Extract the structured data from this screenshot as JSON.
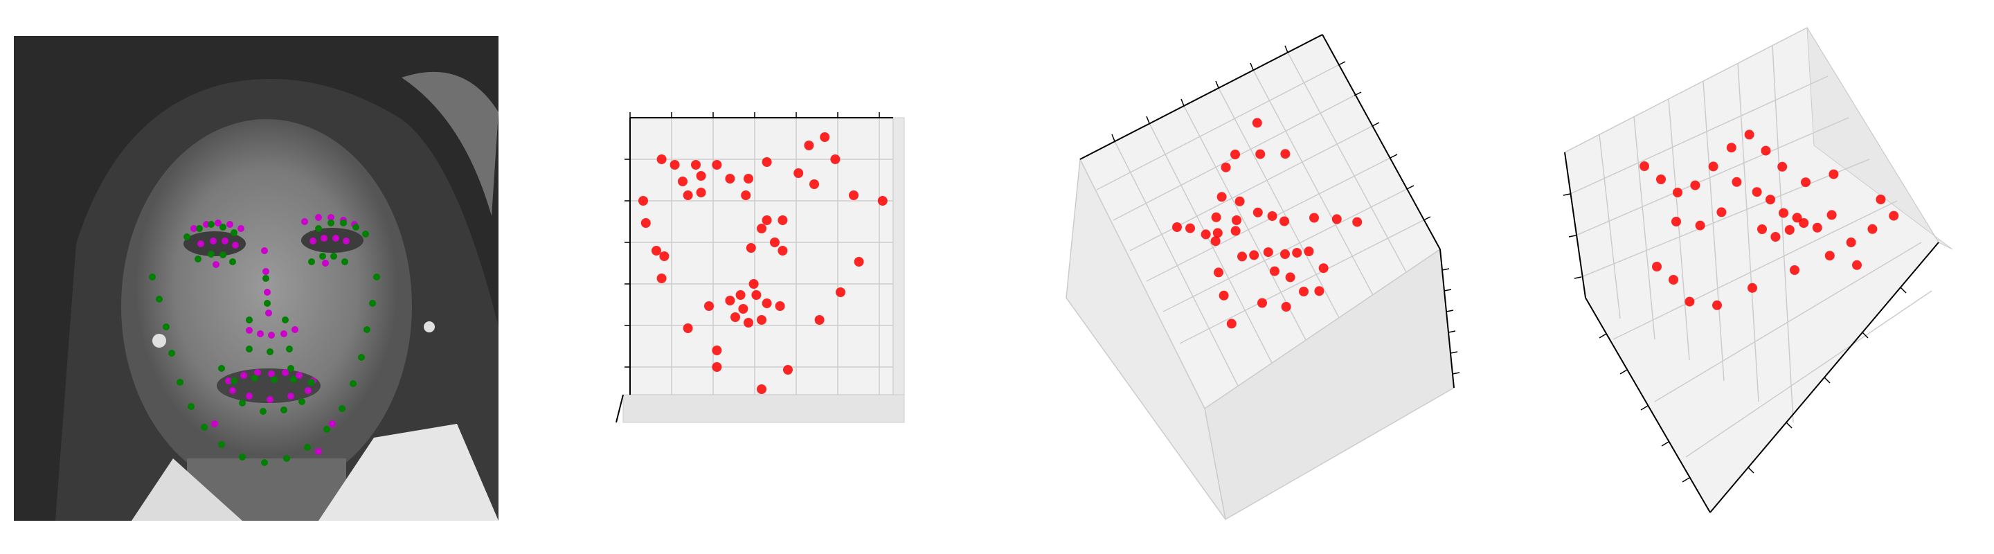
{
  "colors": {
    "landmark_pred": "#cc00cc",
    "landmark_true": "#008000",
    "point3d": "#ff0000",
    "pane": "#f2f2f2",
    "grid": "#cccccc",
    "axis": "#000000"
  },
  "chart_data": [
    {
      "type": "scatter",
      "subtype": "image-overlay",
      "series": [
        {
          "name": "",
          "color": "#cc00cc",
          "points": [
            [
              260,
              278
            ],
            [
              278,
              272
            ],
            [
              295,
              270
            ],
            [
              312,
              272
            ],
            [
              328,
              278
            ],
            [
              270,
              300
            ],
            [
              288,
              296
            ],
            [
              305,
              296
            ],
            [
              320,
              302
            ],
            [
              292,
              330
            ],
            [
              420,
              268
            ],
            [
              440,
              262
            ],
            [
              458,
              262
            ],
            [
              476,
              266
            ],
            [
              492,
              272
            ],
            [
              432,
              296
            ],
            [
              448,
              292
            ],
            [
              465,
              292
            ],
            [
              480,
              296
            ],
            [
              450,
              328
            ],
            [
              362,
              310
            ],
            [
              364,
              340
            ],
            [
              366,
              370
            ],
            [
              368,
              400
            ],
            [
              340,
              425
            ],
            [
              356,
              430
            ],
            [
              372,
              432
            ],
            [
              390,
              430
            ],
            [
              406,
              424
            ],
            [
              310,
              498
            ],
            [
              332,
              490
            ],
            [
              352,
              486
            ],
            [
              372,
              488
            ],
            [
              392,
              486
            ],
            [
              412,
              490
            ],
            [
              432,
              498
            ],
            [
              316,
              512
            ],
            [
              340,
              520
            ],
            [
              370,
              525
            ],
            [
              400,
              520
            ],
            [
              425,
              512
            ],
            [
              290,
              560
            ],
            [
              300,
              590
            ],
            [
              440,
              600
            ],
            [
              460,
              560
            ]
          ]
        },
        {
          "name": "",
          "color": "#008000",
          "points": [
            [
              200,
              348
            ],
            [
              210,
              380
            ],
            [
              220,
              420
            ],
            [
              228,
              458
            ],
            [
              240,
              500
            ],
            [
              256,
              535
            ],
            [
              275,
              565
            ],
            [
              300,
              590
            ],
            [
              330,
              608
            ],
            [
              362,
              616
            ],
            [
              394,
              610
            ],
            [
              424,
              594
            ],
            [
              452,
              568
            ],
            [
              474,
              538
            ],
            [
              490,
              502
            ],
            [
              502,
              464
            ],
            [
              510,
              424
            ],
            [
              518,
              386
            ],
            [
              524,
              348
            ],
            [
              250,
              290
            ],
            [
              268,
              278
            ],
            [
              285,
              272
            ],
            [
              302,
              276
            ],
            [
              318,
              284
            ],
            [
              440,
              278
            ],
            [
              458,
              270
            ],
            [
              476,
              270
            ],
            [
              494,
              276
            ],
            [
              508,
              286
            ],
            [
              266,
              322
            ],
            [
              285,
              315
            ],
            [
              302,
              316
            ],
            [
              316,
              326
            ],
            [
              430,
              326
            ],
            [
              446,
              318
            ],
            [
              462,
              318
            ],
            [
              478,
              326
            ],
            [
              364,
              350
            ],
            [
              366,
              386
            ],
            [
              340,
              410
            ],
            [
              392,
              410
            ],
            [
              340,
              452
            ],
            [
              370,
              456
            ],
            [
              398,
              452
            ],
            [
              318,
              498
            ],
            [
              348,
              494
            ],
            [
              376,
              496
            ],
            [
              404,
              496
            ],
            [
              430,
              500
            ],
            [
              330,
              530
            ],
            [
              360,
              542
            ],
            [
              390,
              540
            ],
            [
              416,
              528
            ],
            [
              400,
              480
            ],
            [
              300,
              480
            ]
          ]
        }
      ]
    },
    {
      "type": "scatter",
      "subtype": "3d",
      "series": [
        {
          "name": "",
          "color": "#ff0000",
          "points": [
            [
              0.12,
              0.85
            ],
            [
              0.17,
              0.83
            ],
            [
              0.25,
              0.83
            ],
            [
              0.33,
              0.83
            ],
            [
              0.52,
              0.84
            ],
            [
              0.78,
              0.85
            ],
            [
              0.68,
              0.9
            ],
            [
              0.74,
              0.93
            ],
            [
              0.2,
              0.77
            ],
            [
              0.27,
              0.79
            ],
            [
              0.38,
              0.78
            ],
            [
              0.45,
              0.78
            ],
            [
              0.64,
              0.8
            ],
            [
              0.7,
              0.76
            ],
            [
              0.22,
              0.72
            ],
            [
              0.27,
              0.73
            ],
            [
              0.44,
              0.72
            ],
            [
              0.52,
              0.63
            ],
            [
              0.58,
              0.63
            ],
            [
              0.46,
              0.53
            ],
            [
              0.5,
              0.6
            ],
            [
              0.55,
              0.55
            ],
            [
              0.58,
              0.52
            ],
            [
              0.3,
              0.32
            ],
            [
              0.38,
              0.34
            ],
            [
              0.43,
              0.31
            ],
            [
              0.48,
              0.36
            ],
            [
              0.52,
              0.33
            ],
            [
              0.57,
              0.32
            ],
            [
              0.4,
              0.28
            ],
            [
              0.45,
              0.26
            ],
            [
              0.5,
              0.27
            ],
            [
              0.42,
              0.36
            ],
            [
              0.47,
              0.4
            ],
            [
              0.05,
              0.7
            ],
            [
              0.06,
              0.62
            ],
            [
              0.1,
              0.52
            ],
            [
              0.13,
              0.5
            ],
            [
              0.12,
              0.42
            ],
            [
              0.22,
              0.24
            ],
            [
              0.33,
              0.16
            ],
            [
              0.33,
              0.1
            ],
            [
              0.5,
              0.02
            ],
            [
              0.6,
              0.09
            ],
            [
              0.72,
              0.27
            ],
            [
              0.8,
              0.37
            ],
            [
              0.87,
              0.48
            ],
            [
              0.85,
              0.72
            ],
            [
              0.96,
              0.7
            ]
          ]
        }
      ]
    },
    {
      "type": "scatter",
      "subtype": "3d",
      "series": [
        {
          "name": "",
          "color": "#ff0000",
          "points": [
            [
              0.22,
              0.2
            ],
            [
              0.24,
              0.3
            ],
            [
              0.26,
              0.38
            ],
            [
              0.3,
              0.48
            ],
            [
              0.34,
              0.55
            ],
            [
              0.39,
              0.6
            ],
            [
              0.45,
              0.68
            ],
            [
              0.5,
              0.7
            ],
            [
              0.58,
              0.65
            ],
            [
              0.62,
              0.75
            ],
            [
              0.66,
              0.6
            ],
            [
              0.2,
              0.6
            ],
            [
              0.24,
              0.57
            ],
            [
              0.28,
              0.52
            ],
            [
              0.32,
              0.5
            ],
            [
              0.38,
              0.47
            ],
            [
              0.4,
              0.5
            ],
            [
              0.44,
              0.55
            ],
            [
              0.48,
              0.48
            ],
            [
              0.52,
              0.44
            ],
            [
              0.55,
              0.4
            ],
            [
              0.36,
              0.38
            ],
            [
              0.4,
              0.36
            ],
            [
              0.45,
              0.34
            ],
            [
              0.5,
              0.3
            ],
            [
              0.54,
              0.28
            ],
            [
              0.58,
              0.26
            ],
            [
              0.44,
              0.27
            ],
            [
              0.48,
              0.22
            ],
            [
              0.35,
              0.2
            ],
            [
              0.42,
              0.14
            ],
            [
              0.5,
              0.15
            ],
            [
              0.55,
              0.12
            ],
            [
              0.6,
              0.18
            ],
            [
              0.65,
              0.35
            ],
            [
              0.72,
              0.3
            ],
            [
              0.78,
              0.25
            ]
          ]
        }
      ]
    },
    {
      "type": "scatter",
      "subtype": "3d",
      "series": [
        {
          "name": "",
          "color": "#ff0000",
          "points": [
            [
              0.15,
              0.7
            ],
            [
              0.2,
              0.65
            ],
            [
              0.25,
              0.6
            ],
            [
              0.3,
              0.62
            ],
            [
              0.35,
              0.68
            ],
            [
              0.4,
              0.74
            ],
            [
              0.45,
              0.78
            ],
            [
              0.5,
              0.72
            ],
            [
              0.55,
              0.66
            ],
            [
              0.42,
              0.62
            ],
            [
              0.48,
              0.58
            ],
            [
              0.52,
              0.55
            ],
            [
              0.56,
              0.5
            ],
            [
              0.6,
              0.48
            ],
            [
              0.5,
              0.45
            ],
            [
              0.54,
              0.42
            ],
            [
              0.58,
              0.44
            ],
            [
              0.62,
              0.46
            ],
            [
              0.66,
              0.44
            ],
            [
              0.7,
              0.48
            ],
            [
              0.2,
              0.35
            ],
            [
              0.25,
              0.3
            ],
            [
              0.3,
              0.22
            ],
            [
              0.38,
              0.2
            ],
            [
              0.48,
              0.25
            ],
            [
              0.6,
              0.3
            ],
            [
              0.7,
              0.34
            ],
            [
              0.76,
              0.38
            ],
            [
              0.82,
              0.42
            ],
            [
              0.88,
              0.46
            ],
            [
              0.25,
              0.5
            ],
            [
              0.32,
              0.48
            ],
            [
              0.38,
              0.52
            ],
            [
              0.62,
              0.6
            ],
            [
              0.7,
              0.62
            ],
            [
              0.78,
              0.3
            ],
            [
              0.84,
              0.52
            ]
          ]
        }
      ]
    }
  ]
}
